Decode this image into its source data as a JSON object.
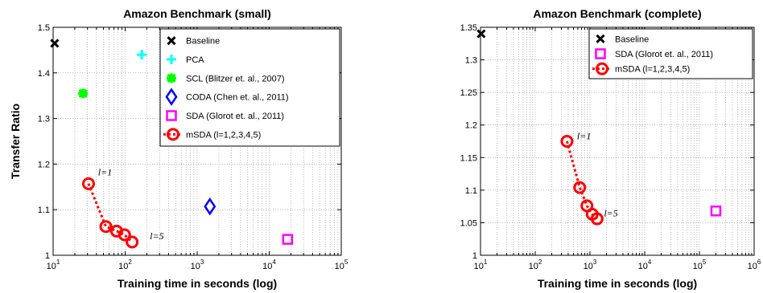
{
  "colors": {
    "baseline": "#000000",
    "pca": "#00ffff",
    "scl": "#00ff00",
    "coda": "#0000ff",
    "sda": "#ff00ff",
    "msda": "#ff0000"
  },
  "chart_data": [
    {
      "type": "scatter",
      "title": "Amazon Benchmark (small)",
      "xlabel": "Training time in seconds (log)",
      "ylabel": "Transfer Ratio",
      "xscale": "log",
      "xlim": [
        10,
        100000
      ],
      "ylim": [
        1.0,
        1.5
      ],
      "xticks": [
        {
          "v": 10,
          "b": "10",
          "e": "1"
        },
        {
          "v": 100,
          "b": "10",
          "e": "2"
        },
        {
          "v": 1000,
          "b": "10",
          "e": "3"
        },
        {
          "v": 10000,
          "b": "10",
          "e": "4"
        },
        {
          "v": 100000,
          "b": "10",
          "e": "5"
        }
      ],
      "yticks": [
        {
          "v": 1.0,
          "label": "1"
        },
        {
          "v": 1.1,
          "label": "1.1"
        },
        {
          "v": 1.2,
          "label": "1.2"
        },
        {
          "v": 1.3,
          "label": "1.3"
        },
        {
          "v": 1.4,
          "label": "1.4"
        },
        {
          "v": 1.5,
          "label": "1.5"
        }
      ],
      "grid": true,
      "legend_position": "top-right",
      "series": [
        {
          "name": "Baseline",
          "marker": "x",
          "color": "#000000",
          "points": [
            [
              10.5,
              1.465
            ]
          ]
        },
        {
          "name": "PCA",
          "marker": "plus",
          "color": "#00ffff",
          "points": [
            [
              170,
              1.44
            ]
          ]
        },
        {
          "name": "SCL (Blitzer et. al., 2007)",
          "marker": "star",
          "color": "#00ff00",
          "points": [
            [
              26,
              1.355
            ]
          ]
        },
        {
          "name": "CODA (Chen et. al., 2011)",
          "marker": "diamond",
          "color": "#0000ff",
          "points": [
            [
              1500,
              1.107
            ]
          ]
        },
        {
          "name": "SDA (Glorot et. al., 2011)",
          "marker": "square",
          "color": "#ff00ff",
          "points": [
            [
              18000,
              1.035
            ]
          ]
        },
        {
          "name": "mSDA (l=1,2,3,4,5)",
          "marker": "circle",
          "line": "dashed",
          "color": "#ff0000",
          "points": [
            [
              31,
              1.157
            ],
            [
              54,
              1.063
            ],
            [
              76,
              1.053
            ],
            [
              98,
              1.045
            ],
            [
              125,
              1.029
            ]
          ]
        }
      ],
      "annotations": [
        {
          "text": "l=1",
          "x": 42,
          "y": 1.175
        },
        {
          "text": "l=5",
          "x": 220,
          "y": 1.035
        }
      ]
    },
    {
      "type": "scatter",
      "title": "Amazon Benchmark (complete)",
      "xlabel": "Training time in seconds (log)",
      "ylabel": "",
      "xscale": "log",
      "xlim": [
        10,
        1000000
      ],
      "ylim": [
        1.0,
        1.35
      ],
      "xticks": [
        {
          "v": 10,
          "b": "10",
          "e": "1"
        },
        {
          "v": 100,
          "b": "10",
          "e": "2"
        },
        {
          "v": 1000,
          "b": "10",
          "e": "3"
        },
        {
          "v": 10000,
          "b": "10",
          "e": "4"
        },
        {
          "v": 100000,
          "b": "10",
          "e": "5"
        },
        {
          "v": 1000000,
          "b": "10",
          "e": "6"
        }
      ],
      "yticks": [
        {
          "v": 1.0,
          "label": "1"
        },
        {
          "v": 1.05,
          "label": "1.05"
        },
        {
          "v": 1.1,
          "label": "1.1"
        },
        {
          "v": 1.15,
          "label": "1.15"
        },
        {
          "v": 1.2,
          "label": "1.2"
        },
        {
          "v": 1.25,
          "label": "1.25"
        },
        {
          "v": 1.3,
          "label": "1.3"
        },
        {
          "v": 1.35,
          "label": "1.35"
        }
      ],
      "grid": true,
      "legend_position": "top-right",
      "series": [
        {
          "name": "Baseline",
          "marker": "x",
          "color": "#000000",
          "points": [
            [
              10.3,
              1.34
            ]
          ]
        },
        {
          "name": "SDA (Glorot et. al., 2011)",
          "marker": "square",
          "color": "#ff00ff",
          "points": [
            [
              200000,
              1.068
            ]
          ]
        },
        {
          "name": "mSDA (l=1,2,3,4,5)",
          "marker": "circle",
          "line": "dashed",
          "color": "#ff0000",
          "points": [
            [
              380,
              1.175
            ],
            [
              650,
              1.104
            ],
            [
              880,
              1.076
            ],
            [
              1100,
              1.063
            ],
            [
              1350,
              1.056
            ]
          ]
        }
      ],
      "annotations": [
        {
          "text": "l=1",
          "x": 580,
          "y": 1.178
        },
        {
          "text": "l=5",
          "x": 1800,
          "y": 1.06
        }
      ]
    }
  ]
}
